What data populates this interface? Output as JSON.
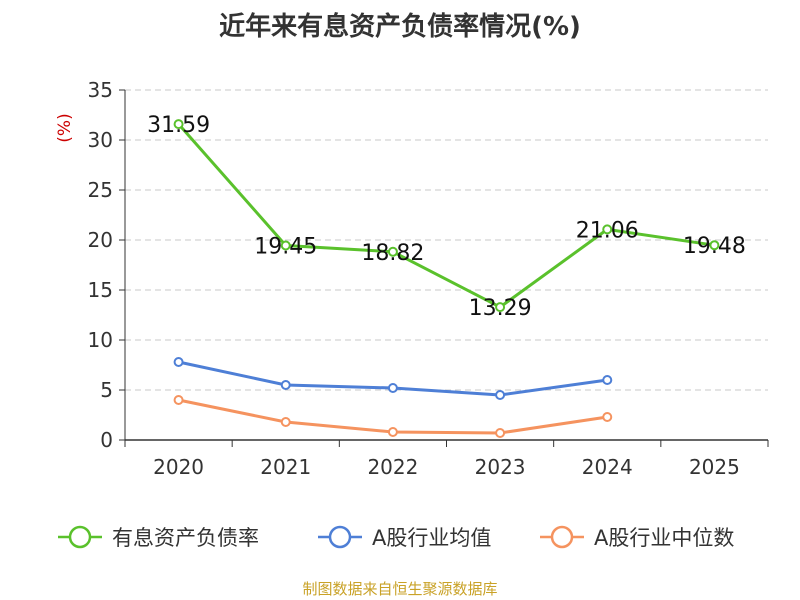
{
  "title": "近年来有息资产负债率情况(%)",
  "footer": "制图数据来自恒生聚源数据库",
  "chart_data": {
    "type": "line",
    "categories": [
      "2020",
      "2021",
      "2022",
      "2023",
      "2024",
      "2025"
    ],
    "ylabel": "(%)",
    "ylim": [
      0,
      35
    ],
    "yticks": [
      0,
      5,
      10,
      15,
      20,
      25,
      30,
      35
    ],
    "grid": true,
    "legend_position": "bottom",
    "series": [
      {
        "name": "有息资产负债率",
        "color": "#5ac12c",
        "values": [
          31.59,
          19.45,
          18.82,
          13.29,
          21.06,
          19.48
        ],
        "labels": [
          "31.59",
          "19.45",
          "18.82",
          "13.29",
          "21.06",
          "19.48"
        ]
      },
      {
        "name": "A股行业均值",
        "color": "#4e7fd6",
        "values": [
          7.8,
          5.5,
          5.2,
          4.5,
          6.0,
          null
        ]
      },
      {
        "name": "A股行业中位数",
        "color": "#f5935f",
        "values": [
          4.0,
          1.8,
          0.8,
          0.7,
          2.3,
          null
        ]
      }
    ]
  }
}
